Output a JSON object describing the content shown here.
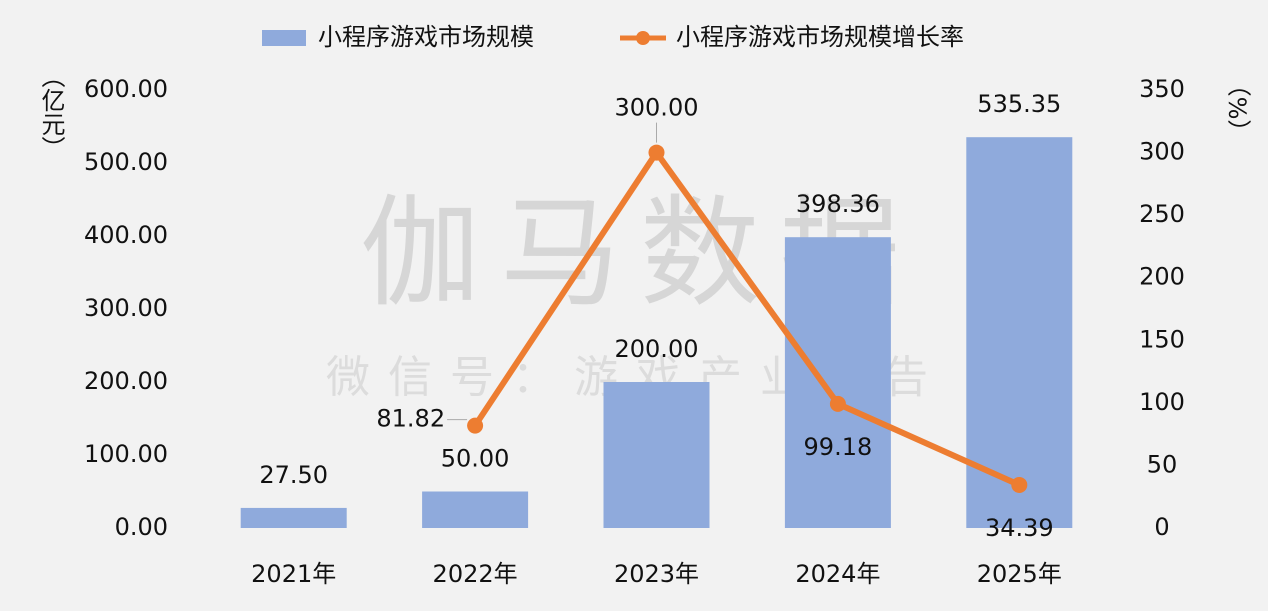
{
  "chart_data": {
    "type": "bar_line",
    "categories": [
      "2021年",
      "2022年",
      "2023年",
      "2024年",
      "2025年"
    ],
    "series": [
      {
        "name": "小程序游戏市场规模",
        "type": "bar",
        "color": "#8faadc",
        "values": [
          27.5,
          50,
          200,
          398.36,
          535.35
        ],
        "value_labels": [
          "27.50",
          "50.00",
          "200.00",
          "398.36",
          "535.35"
        ]
      },
      {
        "name": "小程序游戏市场规模增长率",
        "type": "line",
        "axis": "y2",
        "color": "#ed7d31",
        "values": [
          null,
          81.82,
          300,
          99.18,
          34.39
        ],
        "value_labels": [
          null,
          "81.82",
          "300.00",
          "99.18",
          "34.39"
        ]
      }
    ],
    "y_label": "（亿元）",
    "y2_label": "（%）",
    "ylim": [
      0,
      600
    ],
    "yticks": [
      {
        "value": 0,
        "label": "0.00"
      },
      {
        "value": 100,
        "label": "100.00"
      },
      {
        "value": 200,
        "label": "200.00"
      },
      {
        "value": 300,
        "label": "300.00"
      },
      {
        "value": 400,
        "label": "400.00"
      },
      {
        "value": 500,
        "label": "500.00"
      },
      {
        "value": 600,
        "label": "600.00"
      }
    ],
    "y2lim": [
      0,
      350
    ],
    "y2ticks": [
      0,
      50,
      100,
      150,
      200,
      250,
      300,
      350
    ],
    "watermark": [
      "伽马数据",
      "微信号：游戏产业报告"
    ],
    "legend": "top"
  }
}
